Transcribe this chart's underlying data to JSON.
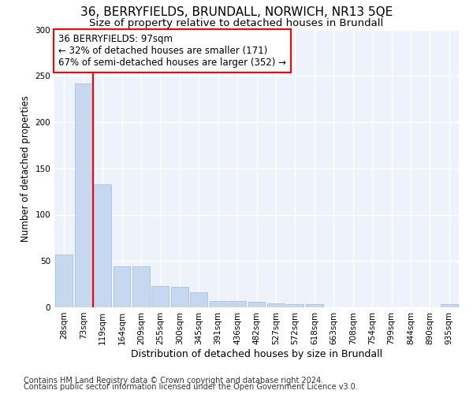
{
  "title1": "36, BERRYFIELDS, BRUNDALL, NORWICH, NR13 5QE",
  "title2": "Size of property relative to detached houses in Brundall",
  "xlabel": "Distribution of detached houses by size in Brundall",
  "ylabel": "Number of detached properties",
  "categories": [
    "28sqm",
    "73sqm",
    "119sqm",
    "164sqm",
    "209sqm",
    "255sqm",
    "300sqm",
    "345sqm",
    "391sqm",
    "436sqm",
    "482sqm",
    "527sqm",
    "572sqm",
    "618sqm",
    "663sqm",
    "708sqm",
    "754sqm",
    "799sqm",
    "844sqm",
    "890sqm",
    "935sqm"
  ],
  "values": [
    57,
    242,
    133,
    44,
    44,
    23,
    22,
    16,
    7,
    7,
    6,
    4,
    3,
    3,
    0,
    0,
    0,
    0,
    0,
    0,
    3
  ],
  "bar_color": "#c5d8f0",
  "bar_edge_color": "#a0b8d8",
  "red_line_x": 1.5,
  "annotation_line1": "36 BERRYFIELDS: 97sqm",
  "annotation_line2": "← 32% of detached houses are smaller (171)",
  "annotation_line3": "67% of semi-detached houses are larger (352) →",
  "annotation_box_color": "white",
  "annotation_box_edge": "red",
  "footer1": "Contains HM Land Registry data © Crown copyright and database right 2024.",
  "footer2": "Contains public sector information licensed under the Open Government Licence v3.0.",
  "ylim": [
    0,
    300
  ],
  "yticks": [
    0,
    50,
    100,
    150,
    200,
    250,
    300
  ],
  "background_color": "#eef2fa",
  "grid_color": "white",
  "title1_fontsize": 11,
  "title2_fontsize": 9.5,
  "xlabel_fontsize": 9,
  "ylabel_fontsize": 8.5,
  "tick_fontsize": 7.5,
  "annotation_fontsize": 8.5,
  "footer_fontsize": 7
}
